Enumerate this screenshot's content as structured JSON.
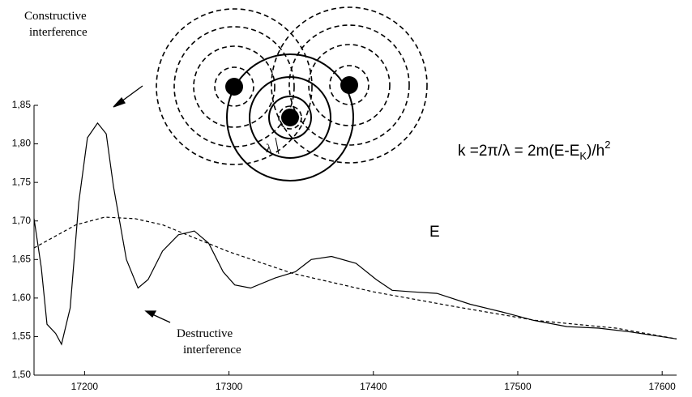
{
  "chart_data": {
    "type": "line",
    "xlim": [
      17165,
      17610
    ],
    "ylim": [
      1.5,
      1.85
    ],
    "xticks": [
      17200,
      17300,
      17400,
      17500,
      17600
    ],
    "yticks": [
      {
        "value": 1.5,
        "label": "1,50"
      },
      {
        "value": 1.55,
        "label": "1,55"
      },
      {
        "value": 1.6,
        "label": "1,60"
      },
      {
        "value": 1.65,
        "label": "1,65"
      },
      {
        "value": 1.7,
        "label": "1,70"
      },
      {
        "value": 1.75,
        "label": "1,75"
      },
      {
        "value": 1.8,
        "label": "1,80"
      },
      {
        "value": 1.85,
        "label": "1,85"
      }
    ],
    "series": [
      {
        "color": "#000000",
        "dash": false,
        "x": [
          17165,
          17170,
          17174,
          17180,
          17184,
          17190,
          17196,
          17202,
          17209,
          17215,
          17220,
          17229,
          17237,
          17244,
          17254,
          17265,
          17276,
          17286,
          17296,
          17304,
          17315,
          17332,
          17346,
          17357,
          17371,
          17388,
          17402,
          17413,
          17427,
          17444,
          17467,
          17489,
          17511,
          17534,
          17556,
          17578,
          17610
        ],
        "values": [
          1.703,
          1.64,
          1.566,
          1.554,
          1.54,
          1.587,
          1.724,
          1.808,
          1.827,
          1.813,
          1.745,
          1.65,
          1.613,
          1.624,
          1.661,
          1.682,
          1.687,
          1.671,
          1.634,
          1.617,
          1.613,
          1.626,
          1.634,
          1.65,
          1.654,
          1.645,
          1.624,
          1.61,
          1.608,
          1.606,
          1.592,
          1.582,
          1.571,
          1.563,
          1.561,
          1.556,
          1.547
        ]
      },
      {
        "color": "#000000",
        "dash": true,
        "x": [
          17165,
          17194,
          17214,
          17235,
          17254,
          17300,
          17344,
          17400,
          17456,
          17512,
          17568,
          17610
        ],
        "values": [
          1.665,
          1.695,
          1.705,
          1.703,
          1.695,
          1.66,
          1.632,
          1.608,
          1.589,
          1.571,
          1.561,
          1.547
        ]
      }
    ],
    "annotations": [
      {
        "lines": [
          "Constructive",
          "interference"
        ]
      },
      {
        "lines": [
          "Destructive",
          "interference"
        ]
      }
    ],
    "formula": {
      "main": "k =2π/λ =  2m(E-E",
      "sub": "K",
      "mid": ")/h",
      "sup": "2"
    },
    "energy_label": "E",
    "wavelength_label": "λ"
  }
}
